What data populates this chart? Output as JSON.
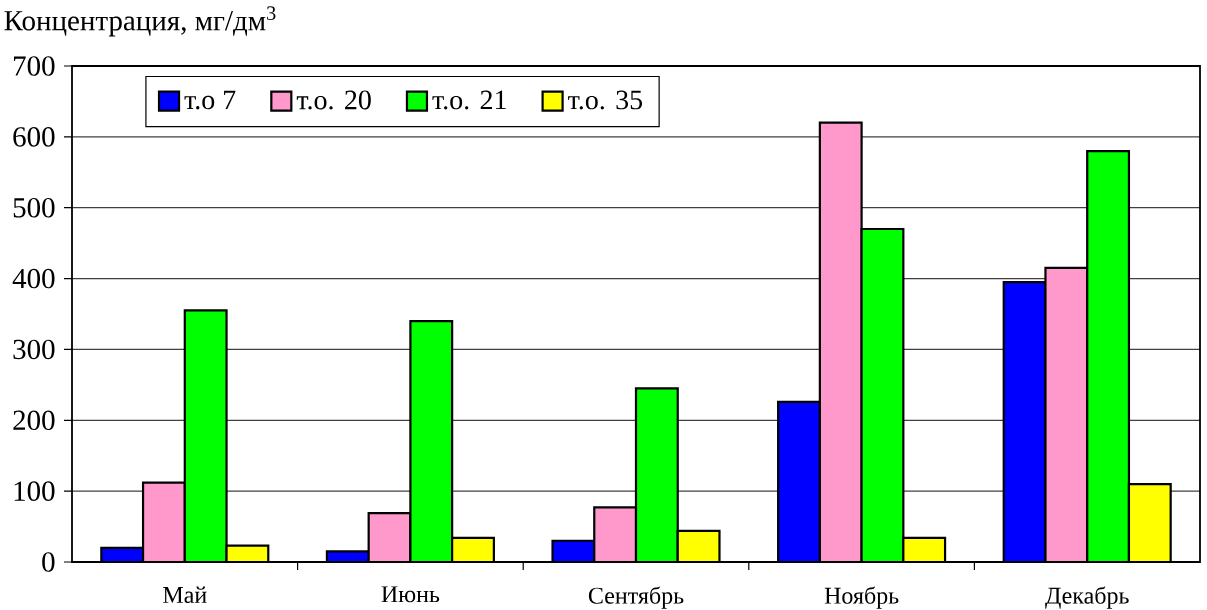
{
  "chart_data": {
    "type": "bar",
    "ylabel": "Концентрация, мг/дм$^{3}$",
    "categories": [
      "Май",
      "Июнь",
      "Сентябрь",
      "Ноябрь",
      "Декабрь"
    ],
    "series": [
      {
        "name": "т.о 7",
        "color": "#0000ff",
        "values": [
          20,
          15,
          30,
          226,
          395
        ]
      },
      {
        "name": "т.о. 20",
        "color": "#ff99cc",
        "values": [
          112,
          69,
          77,
          620,
          415
        ]
      },
      {
        "name": "т.о. 21",
        "color": "#00ff00",
        "values": [
          355,
          340,
          245,
          470,
          580
        ]
      },
      {
        "name": "т.о. 35",
        "color": "#ffff00",
        "values": [
          23,
          34,
          44,
          34,
          110
        ]
      }
    ],
    "ylim": [
      0,
      700
    ],
    "yticks": [
      0,
      100,
      200,
      300,
      400,
      500,
      600,
      700
    ],
    "grid": "y",
    "legend": "top left"
  }
}
